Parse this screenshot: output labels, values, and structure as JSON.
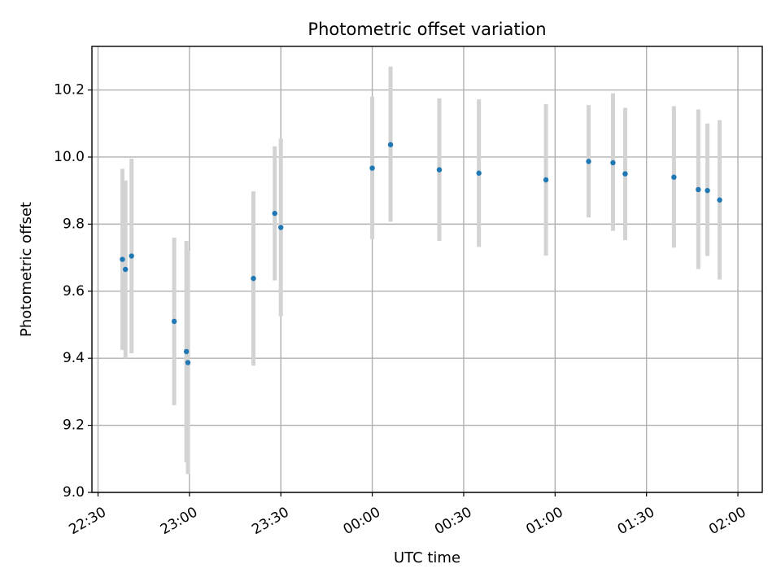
{
  "chart_data": {
    "type": "scatter",
    "title": "Photometric offset variation",
    "xlabel": "UTC time",
    "ylabel": "Photometric offset",
    "x_ticks": [
      {
        "time": "22:30",
        "label": "22:30"
      },
      {
        "time": "23:00",
        "label": "23:00"
      },
      {
        "time": "23:30",
        "label": "23:30"
      },
      {
        "time": "00:00",
        "label": "00:00"
      },
      {
        "time": "00:30",
        "label": "00:30"
      },
      {
        "time": "01:00",
        "label": "01:00"
      },
      {
        "time": "01:30",
        "label": "01:30"
      },
      {
        "time": "02:00",
        "label": "02:00"
      }
    ],
    "xlim": [
      "22:28",
      "02:08"
    ],
    "ylim": [
      9.0,
      10.33
    ],
    "y_ticks": [
      9.0,
      9.2,
      9.4,
      9.6,
      9.8,
      10.0,
      10.2
    ],
    "y_tick_labels": [
      "9.0",
      "9.2",
      "9.4",
      "9.6",
      "9.8",
      "10.0",
      "10.2"
    ],
    "grid": true,
    "colors": {
      "point": "#1f77b4",
      "errorbar": "#d3d3d3",
      "grid": "#b0b0b0"
    },
    "points": [
      {
        "x": "22:38",
        "y": 9.695,
        "ylo": 9.425,
        "yhi": 9.965
      },
      {
        "x": "22:39",
        "y": 9.665,
        "ylo": 9.4,
        "yhi": 9.93
      },
      {
        "x": "22:41",
        "y": 9.705,
        "ylo": 9.415,
        "yhi": 9.995
      },
      {
        "x": "22:55",
        "y": 9.51,
        "ylo": 9.26,
        "yhi": 9.76
      },
      {
        "x": "22:59",
        "y": 9.42,
        "ylo": 9.09,
        "yhi": 9.75
      },
      {
        "x": "22:59.5",
        "y": 9.387,
        "ylo": 9.055,
        "yhi": 9.72
      },
      {
        "x": "23:21",
        "y": 9.638,
        "ylo": 9.378,
        "yhi": 9.898
      },
      {
        "x": "23:28",
        "y": 9.832,
        "ylo": 9.632,
        "yhi": 10.032
      },
      {
        "x": "23:30",
        "y": 9.79,
        "ylo": 9.525,
        "yhi": 10.055
      },
      {
        "x": "00:00",
        "y": 9.967,
        "ylo": 9.755,
        "yhi": 10.18
      },
      {
        "x": "00:06",
        "y": 10.037,
        "ylo": 9.807,
        "yhi": 10.27
      },
      {
        "x": "00:22",
        "y": 9.962,
        "ylo": 9.75,
        "yhi": 10.175
      },
      {
        "x": "00:35",
        "y": 9.952,
        "ylo": 9.732,
        "yhi": 10.172
      },
      {
        "x": "00:57",
        "y": 9.932,
        "ylo": 9.706,
        "yhi": 10.158
      },
      {
        "x": "01:11",
        "y": 9.987,
        "ylo": 9.82,
        "yhi": 10.155
      },
      {
        "x": "01:19",
        "y": 9.983,
        "ylo": 9.78,
        "yhi": 10.19
      },
      {
        "x": "01:23",
        "y": 9.95,
        "ylo": 9.752,
        "yhi": 10.147
      },
      {
        "x": "01:39",
        "y": 9.94,
        "ylo": 9.73,
        "yhi": 10.152
      },
      {
        "x": "01:47",
        "y": 9.903,
        "ylo": 9.666,
        "yhi": 10.142
      },
      {
        "x": "01:50",
        "y": 9.9,
        "ylo": 9.705,
        "yhi": 10.1
      },
      {
        "x": "01:54",
        "y": 9.872,
        "ylo": 9.635,
        "yhi": 10.11
      }
    ]
  }
}
